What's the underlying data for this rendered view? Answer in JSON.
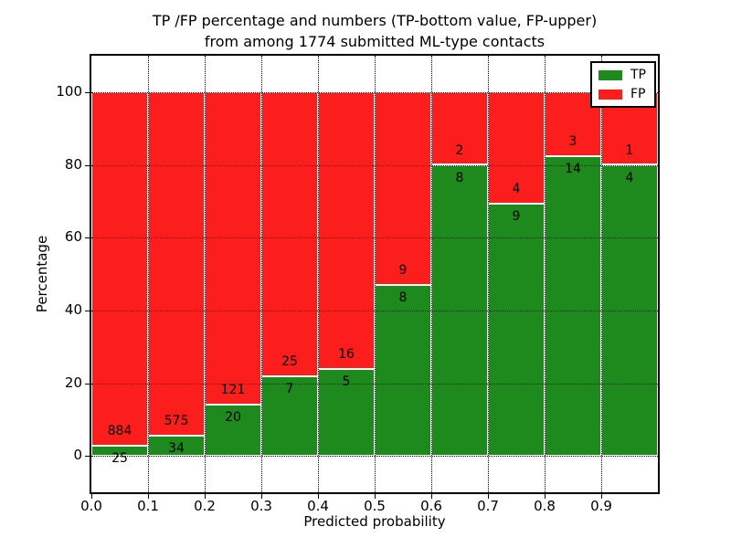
{
  "chart_data": {
    "type": "bar",
    "stacked": true,
    "title_line1": "TP /FP percentage and numbers (TP-bottom value, FP-upper)",
    "title_line2": "from among 1774 submitted ML-type contacts",
    "xlabel": "Predicted probability",
    "ylabel": "Percentage",
    "xlim": [
      0.0,
      1.0
    ],
    "ylim": [
      -10,
      110
    ],
    "grid": true,
    "legend_position": "upper right",
    "xticks": [
      "0.0",
      "0.1",
      "0.2",
      "0.3",
      "0.4",
      "0.5",
      "0.6",
      "0.7",
      "0.8",
      "0.9"
    ],
    "yticks": [
      "0",
      "20",
      "40",
      "60",
      "80",
      "100"
    ],
    "legend": [
      {
        "label": "TP",
        "color": "#1e8a1e"
      },
      {
        "label": "FP",
        "color": "#fc1d1d"
      }
    ],
    "bars": [
      {
        "x_range": "0.0-0.1",
        "tp_count": 25,
        "fp_count": 884,
        "tp_pct": 2.75,
        "fp_pct": 97.25
      },
      {
        "x_range": "0.1-0.2",
        "tp_count": 34,
        "fp_count": 575,
        "tp_pct": 5.58,
        "fp_pct": 94.42
      },
      {
        "x_range": "0.2-0.3",
        "tp_count": 20,
        "fp_count": 121,
        "tp_pct": 14.18,
        "fp_pct": 85.82
      },
      {
        "x_range": "0.3-0.4",
        "tp_count": 7,
        "fp_count": 25,
        "tp_pct": 21.88,
        "fp_pct": 78.12
      },
      {
        "x_range": "0.4-0.5",
        "tp_count": 5,
        "fp_count": 16,
        "tp_pct": 23.81,
        "fp_pct": 76.19
      },
      {
        "x_range": "0.5-0.6",
        "tp_count": 8,
        "fp_count": 9,
        "tp_pct": 47.06,
        "fp_pct": 52.94
      },
      {
        "x_range": "0.6-0.7",
        "tp_count": 8,
        "fp_count": 2,
        "tp_pct": 80.0,
        "fp_pct": 20.0
      },
      {
        "x_range": "0.7-0.8",
        "tp_count": 9,
        "fp_count": 4,
        "tp_pct": 69.23,
        "fp_pct": 30.77
      },
      {
        "x_range": "0.8-0.9",
        "tp_count": 14,
        "fp_count": 3,
        "tp_pct": 82.35,
        "fp_pct": 17.65
      },
      {
        "x_range": "0.9-1.0",
        "tp_count": 4,
        "fp_count": 1,
        "tp_pct": 80.0,
        "fp_pct": 20.0
      }
    ]
  }
}
